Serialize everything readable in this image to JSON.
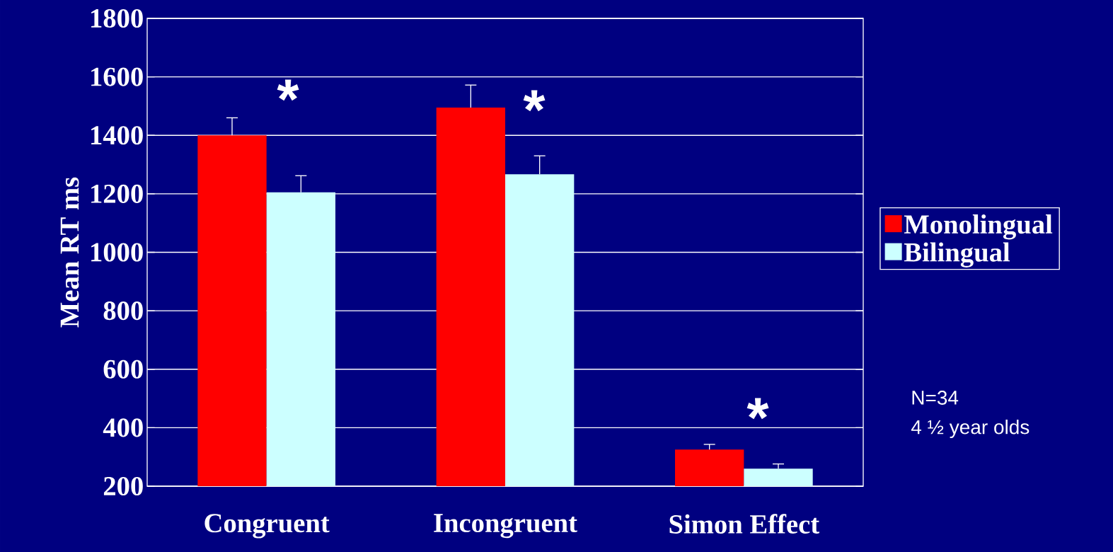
{
  "chart_data": {
    "type": "bar",
    "ylabel": "Mean RT ms",
    "categories": [
      "Congruent",
      "Incongruent",
      "Simon Effect"
    ],
    "series": [
      {
        "name": "Monolingual",
        "color": "#ff0000",
        "values": [
          1400,
          1495,
          325
        ],
        "errors": [
          60,
          77,
          18
        ]
      },
      {
        "name": "Bilingual",
        "color": "#ccffff",
        "values": [
          1205,
          1267,
          260
        ],
        "errors": [
          57,
          63,
          16
        ]
      }
    ],
    "ylim": [
      200,
      1800
    ],
    "yticks": [
      200,
      400,
      600,
      800,
      1000,
      1200,
      1400,
      1600,
      1800
    ],
    "grid": "y",
    "legend": "right",
    "annotations": [
      "*",
      "*",
      "*",
      "N=34",
      "4 ½ year olds"
    ]
  }
}
